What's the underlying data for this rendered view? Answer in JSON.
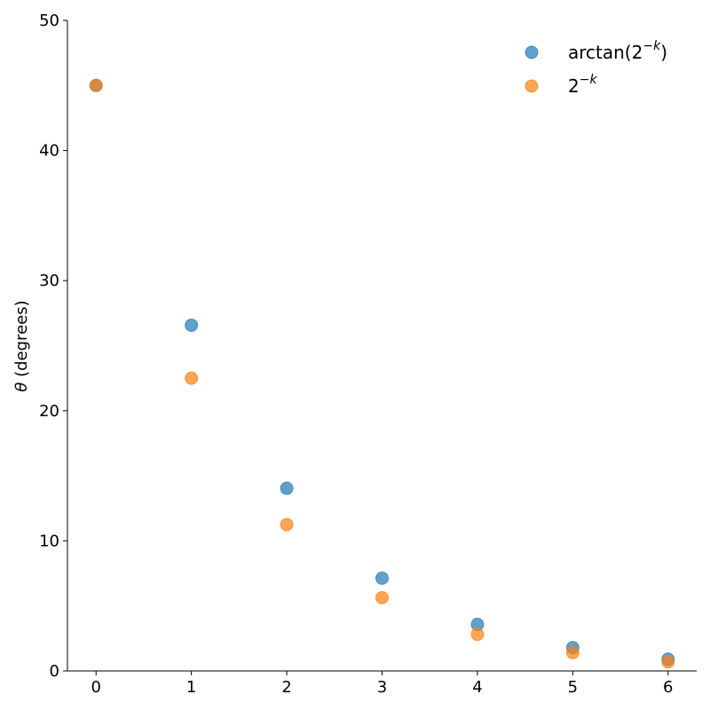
{
  "chart_data": {
    "type": "scatter",
    "title": "",
    "xlabel": "",
    "ylabel": "θ (degrees)",
    "ylabel_symbol": "θ",
    "ylabel_rest": " (degrees)",
    "xlim": [
      -0.3,
      6.3
    ],
    "ylim": [
      0,
      50
    ],
    "xticks": [
      0,
      1,
      2,
      3,
      4,
      5,
      6
    ],
    "yticks": [
      0,
      10,
      20,
      30,
      40,
      50
    ],
    "grid": false,
    "legend_placement": "top-right",
    "x": [
      0,
      1,
      2,
      3,
      4,
      5,
      6
    ],
    "series": [
      {
        "name": "arctan(2^{-k})",
        "legend_base": "arctan(2",
        "legend_sup": "−k",
        "legend_end": ")",
        "color": "#1f77b4",
        "values": [
          45.0,
          26.57,
          14.04,
          7.13,
          3.58,
          1.79,
          0.9
        ]
      },
      {
        "name": "2^{-k}",
        "legend_base": "2",
        "legend_sup": "−k",
        "legend_end": "",
        "color": "#ff7f0e",
        "values": [
          45.0,
          22.5,
          11.25,
          5.63,
          2.81,
          1.41,
          0.7
        ]
      }
    ]
  }
}
